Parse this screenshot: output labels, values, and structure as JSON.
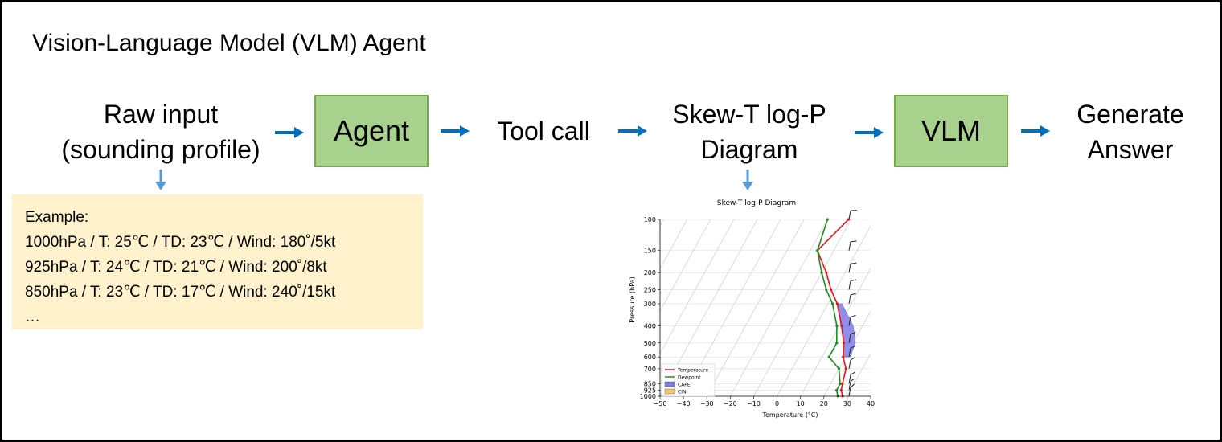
{
  "title": "Vision-Language Model (VLM) Agent",
  "nodes": {
    "raw_input": [
      "Raw input",
      "(sounding profile)"
    ],
    "agent": "Agent",
    "tool_call": "Tool call",
    "diagram": [
      "Skew-T log-P",
      "Diagram"
    ],
    "vlm": "VLM",
    "answer": [
      "Generate",
      "Answer"
    ]
  },
  "colors": {
    "arrow": "#0070c0",
    "down_arrow": "#5b9bd5",
    "box_fill": "#a9d18e",
    "box_border": "#70ad47",
    "example_fill": "#fff2cc"
  },
  "example": {
    "heading": "Example:",
    "lines": [
      "1000hPa / T: 25℃ / TD: 23℃ / Wind: 180˚/5kt",
      "925hPa / T: 24℃ / TD: 21℃ / Wind: 200˚/8kt",
      "850hPa / T: 23℃ / TD: 17℃ / Wind: 240˚/15kt",
      "…"
    ]
  },
  "chart_data": {
    "type": "line",
    "title": "Skew-T log-P Diagram",
    "xlabel": "Temperature (°C)",
    "ylabel": "Pressure (hPa)",
    "x_ticks": [
      -50,
      -40,
      -30,
      -20,
      -10,
      0,
      10,
      20,
      30,
      40
    ],
    "y_ticks": [
      100,
      150,
      200,
      250,
      300,
      400,
      500,
      600,
      700,
      850,
      925,
      1000
    ],
    "y_scale": "log",
    "y_inverted": true,
    "xlim": [
      -50,
      40
    ],
    "ylim": [
      1000,
      100
    ],
    "skewed_isotherms": true,
    "legend_position": "lower-left",
    "legend": [
      "Temperature",
      "Dewpoint",
      "CAPE",
      "CIN"
    ],
    "series_colors": {
      "temperature": "#e8141a",
      "dewpoint": "#1f8a1f",
      "cape": "#7b7be8",
      "cin": "#f5c36b"
    },
    "series": [
      {
        "name": "Temperature",
        "pressure": [
          1000,
          925,
          850,
          700,
          600,
          500,
          400,
          300,
          250,
          200,
          150,
          100
        ],
        "temperature": [
          28,
          26,
          25,
          23,
          19,
          16,
          11,
          4,
          -2,
          -8,
          -17,
          -11
        ]
      },
      {
        "name": "Dewpoint",
        "pressure": [
          1000,
          925,
          850,
          700,
          600,
          500,
          400,
          300,
          250,
          200,
          150,
          100
        ],
        "temperature": [
          26,
          24,
          24,
          20,
          13,
          13,
          9,
          2,
          -4,
          -10,
          -17,
          -20
        ]
      }
    ],
    "cape_region": {
      "pressure": [
        600,
        500,
        400,
        300
      ],
      "left": [
        19,
        16,
        11,
        4
      ],
      "right": [
        22,
        21,
        16,
        6
      ]
    },
    "wind_barbs": [
      100,
      150,
      200,
      250,
      300,
      400,
      500,
      600,
      700,
      850,
      925,
      1000
    ]
  }
}
